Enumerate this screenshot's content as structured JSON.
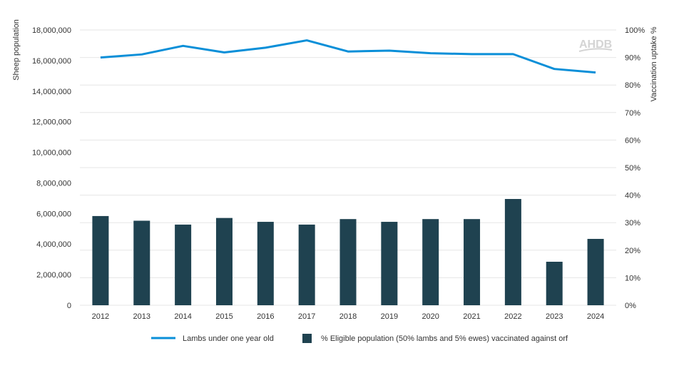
{
  "chart_data": {
    "type": "bar+line",
    "categories": [
      "2012",
      "2013",
      "2014",
      "2015",
      "2016",
      "2017",
      "2018",
      "2019",
      "2020",
      "2021",
      "2022",
      "2023",
      "2024"
    ],
    "series": [
      {
        "name": "Lambs under one year old",
        "type": "line",
        "axis": "left",
        "color": "#0a8fd8",
        "values": [
          16200000,
          16400000,
          16960000,
          16530000,
          16840000,
          17320000,
          16590000,
          16650000,
          16480000,
          16420000,
          16420000,
          15450000,
          15220000
        ]
      },
      {
        "name": "% Eligible population (50% lambs and 5% ewes) vaccinated against orf",
        "type": "bar",
        "axis": "right",
        "color": "#1f4250",
        "values": [
          32.4,
          30.7,
          29.3,
          31.7,
          30.3,
          29.3,
          31.3,
          30.3,
          31.3,
          31.3,
          38.6,
          15.8,
          24.1
        ]
      }
    ],
    "ylabel": "Sheep population",
    "ylabel_right": "Vaccination uptake %",
    "ylim": [
      0,
      18000000
    ],
    "ylim_right": [
      0,
      100
    ],
    "yticks": [
      "0",
      "2,000,000",
      "4,000,000",
      "6,000,000",
      "8,000,000",
      "10,000,000",
      "12,000,000",
      "14,000,000",
      "16,000,000",
      "18,000,000"
    ],
    "yticks_right": [
      "0%",
      "10%",
      "20%",
      "30%",
      "40%",
      "50%",
      "60%",
      "70%",
      "80%",
      "90%",
      "100%"
    ],
    "grid": true,
    "legend_position": "bottom",
    "watermark": "AHDB"
  }
}
